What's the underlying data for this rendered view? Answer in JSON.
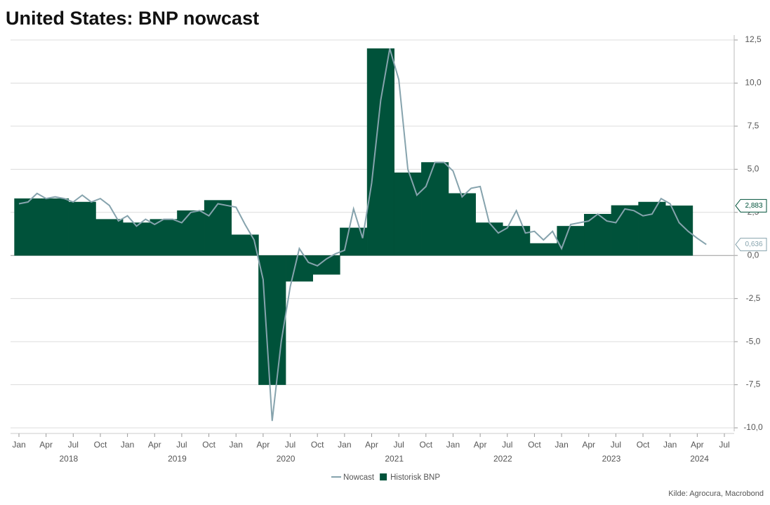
{
  "chart_data": {
    "type": "line",
    "title": "United States: BNP nowcast",
    "source": "Kilde: Agrocura, Macrobond",
    "xlim": [
      "2018-01",
      "2024-07"
    ],
    "ylim": [
      -10,
      12.5
    ],
    "yticks": [
      {
        "value": -10,
        "label": "-10,0"
      },
      {
        "value": -7.5,
        "label": "-7,5"
      },
      {
        "value": -5,
        "label": "-5,0"
      },
      {
        "value": -2.5,
        "label": "-2,5"
      },
      {
        "value": 0,
        "label": "0,0"
      },
      {
        "value": 2.5,
        "label": "2,5"
      },
      {
        "value": 5,
        "label": "5,0"
      },
      {
        "value": 7.5,
        "label": "7,5"
      },
      {
        "value": 10,
        "label": "10,0"
      },
      {
        "value": 12.5,
        "label": "12,5"
      }
    ],
    "xticks": [
      {
        "value": "2018-01",
        "label": "Jan"
      },
      {
        "value": "2018-04",
        "label": "Apr"
      },
      {
        "value": "2018-07",
        "label": "Jul"
      },
      {
        "value": "2018-10",
        "label": "Oct"
      },
      {
        "value": "2019-01",
        "label": "Jan"
      },
      {
        "value": "2019-04",
        "label": "Apr"
      },
      {
        "value": "2019-07",
        "label": "Jul"
      },
      {
        "value": "2019-10",
        "label": "Oct"
      },
      {
        "value": "2020-01",
        "label": "Jan"
      },
      {
        "value": "2020-04",
        "label": "Apr"
      },
      {
        "value": "2020-07",
        "label": "Jul"
      },
      {
        "value": "2020-10",
        "label": "Oct"
      },
      {
        "value": "2021-01",
        "label": "Jan"
      },
      {
        "value": "2021-04",
        "label": "Apr"
      },
      {
        "value": "2021-07",
        "label": "Jul"
      },
      {
        "value": "2021-10",
        "label": "Oct"
      },
      {
        "value": "2022-01",
        "label": "Jan"
      },
      {
        "value": "2022-04",
        "label": "Apr"
      },
      {
        "value": "2022-07",
        "label": "Jul"
      },
      {
        "value": "2022-10",
        "label": "Oct"
      },
      {
        "value": "2023-01",
        "label": "Jan"
      },
      {
        "value": "2023-04",
        "label": "Apr"
      },
      {
        "value": "2023-07",
        "label": "Jul"
      },
      {
        "value": "2023-10",
        "label": "Oct"
      },
      {
        "value": "2024-01",
        "label": "Jan"
      },
      {
        "value": "2024-04",
        "label": "Apr"
      },
      {
        "value": "2024-07",
        "label": "Jul"
      }
    ],
    "years": [
      2018,
      2019,
      2020,
      2021,
      2022,
      2023,
      2024
    ],
    "grid": true,
    "legend": "bottom",
    "series": [
      {
        "name": "Nowcast",
        "color": "#86a3ad",
        "style": "line",
        "x": [
          "2018-01",
          "2018-02",
          "2018-03",
          "2018-04",
          "2018-05",
          "2018-06",
          "2018-07",
          "2018-08",
          "2018-09",
          "2018-10",
          "2018-11",
          "2018-12",
          "2019-01",
          "2019-02",
          "2019-03",
          "2019-04",
          "2019-05",
          "2019-06",
          "2019-07",
          "2019-08",
          "2019-09",
          "2019-10",
          "2019-11",
          "2019-12",
          "2020-01",
          "2020-02",
          "2020-03",
          "2020-04",
          "2020-05",
          "2020-06",
          "2020-07",
          "2020-08",
          "2020-09",
          "2020-10",
          "2020-11",
          "2020-12",
          "2021-01",
          "2021-02",
          "2021-03",
          "2021-04",
          "2021-05",
          "2021-06",
          "2021-07",
          "2021-08",
          "2021-09",
          "2021-10",
          "2021-11",
          "2021-12",
          "2022-01",
          "2022-02",
          "2022-03",
          "2022-04",
          "2022-05",
          "2022-06",
          "2022-07",
          "2022-08",
          "2022-09",
          "2022-10",
          "2022-11",
          "2022-12",
          "2023-01",
          "2023-02",
          "2023-03",
          "2023-04",
          "2023-05",
          "2023-06",
          "2023-07",
          "2023-08",
          "2023-09",
          "2023-10",
          "2023-11",
          "2023-12",
          "2024-01",
          "2024-02",
          "2024-03",
          "2024-04",
          "2024-05"
        ],
        "values": [
          3.0,
          3.1,
          3.6,
          3.3,
          3.4,
          3.3,
          3.1,
          3.5,
          3.1,
          3.3,
          2.9,
          2.0,
          2.3,
          1.7,
          2.1,
          1.8,
          2.1,
          2.1,
          1.9,
          2.5,
          2.6,
          2.3,
          3.0,
          2.9,
          2.8,
          1.8,
          0.9,
          -1.4,
          -9.6,
          -5.0,
          -1.8,
          0.4,
          -0.4,
          -0.6,
          -0.2,
          0.1,
          0.3,
          2.7,
          1.0,
          4.2,
          9.0,
          12.0,
          10.2,
          5.0,
          3.5,
          4.0,
          5.4,
          5.4,
          4.9,
          3.4,
          3.9,
          4.0,
          1.9,
          1.3,
          1.6,
          2.6,
          1.3,
          1.4,
          0.9,
          1.4,
          0.4,
          1.8,
          1.9,
          2.0,
          2.4,
          2.0,
          1.9,
          2.7,
          2.6,
          2.3,
          2.4,
          3.3,
          3.0,
          1.9,
          1.4,
          1.0,
          0.636
        ],
        "value_labels": [
          null,
          null,
          null,
          null,
          null,
          null,
          null,
          null,
          null,
          null,
          null,
          null,
          null,
          null,
          null,
          null,
          null,
          null,
          null,
          null,
          null,
          null,
          null,
          null,
          null,
          null,
          null,
          null,
          null,
          null,
          null,
          null,
          null,
          null,
          null,
          null,
          null,
          null,
          null,
          null,
          null,
          null,
          null,
          null,
          null,
          null,
          null,
          null,
          null,
          null,
          null,
          null,
          null,
          null,
          null,
          null,
          null,
          null,
          null,
          null,
          null,
          null,
          null,
          null,
          null,
          null,
          null,
          null,
          null,
          null,
          null,
          null,
          null,
          null,
          null,
          null,
          "0,636"
        ]
      },
      {
        "name": "Historisk BNP",
        "color": "#00523a",
        "style": "step-area",
        "x": [
          "2018-01",
          "2018-04",
          "2018-07",
          "2018-10",
          "2019-01",
          "2019-04",
          "2019-07",
          "2019-10",
          "2020-01",
          "2020-04",
          "2020-07",
          "2020-10",
          "2021-01",
          "2021-04",
          "2021-07",
          "2021-10",
          "2022-01",
          "2022-04",
          "2022-07",
          "2022-10",
          "2023-01",
          "2023-04",
          "2023-07",
          "2023-10",
          "2024-01"
        ],
        "values": [
          3.3,
          3.3,
          3.1,
          2.1,
          1.9,
          2.1,
          2.6,
          3.2,
          1.2,
          -7.5,
          -1.5,
          -1.1,
          1.6,
          12.0,
          4.8,
          5.4,
          3.6,
          1.9,
          1.7,
          0.7,
          1.7,
          2.4,
          2.9,
          3.1,
          2.883
        ],
        "value_labels": [
          null,
          null,
          null,
          null,
          null,
          null,
          null,
          null,
          null,
          null,
          null,
          null,
          null,
          null,
          null,
          null,
          null,
          null,
          null,
          null,
          null,
          null,
          null,
          null,
          "2,883"
        ]
      }
    ]
  }
}
